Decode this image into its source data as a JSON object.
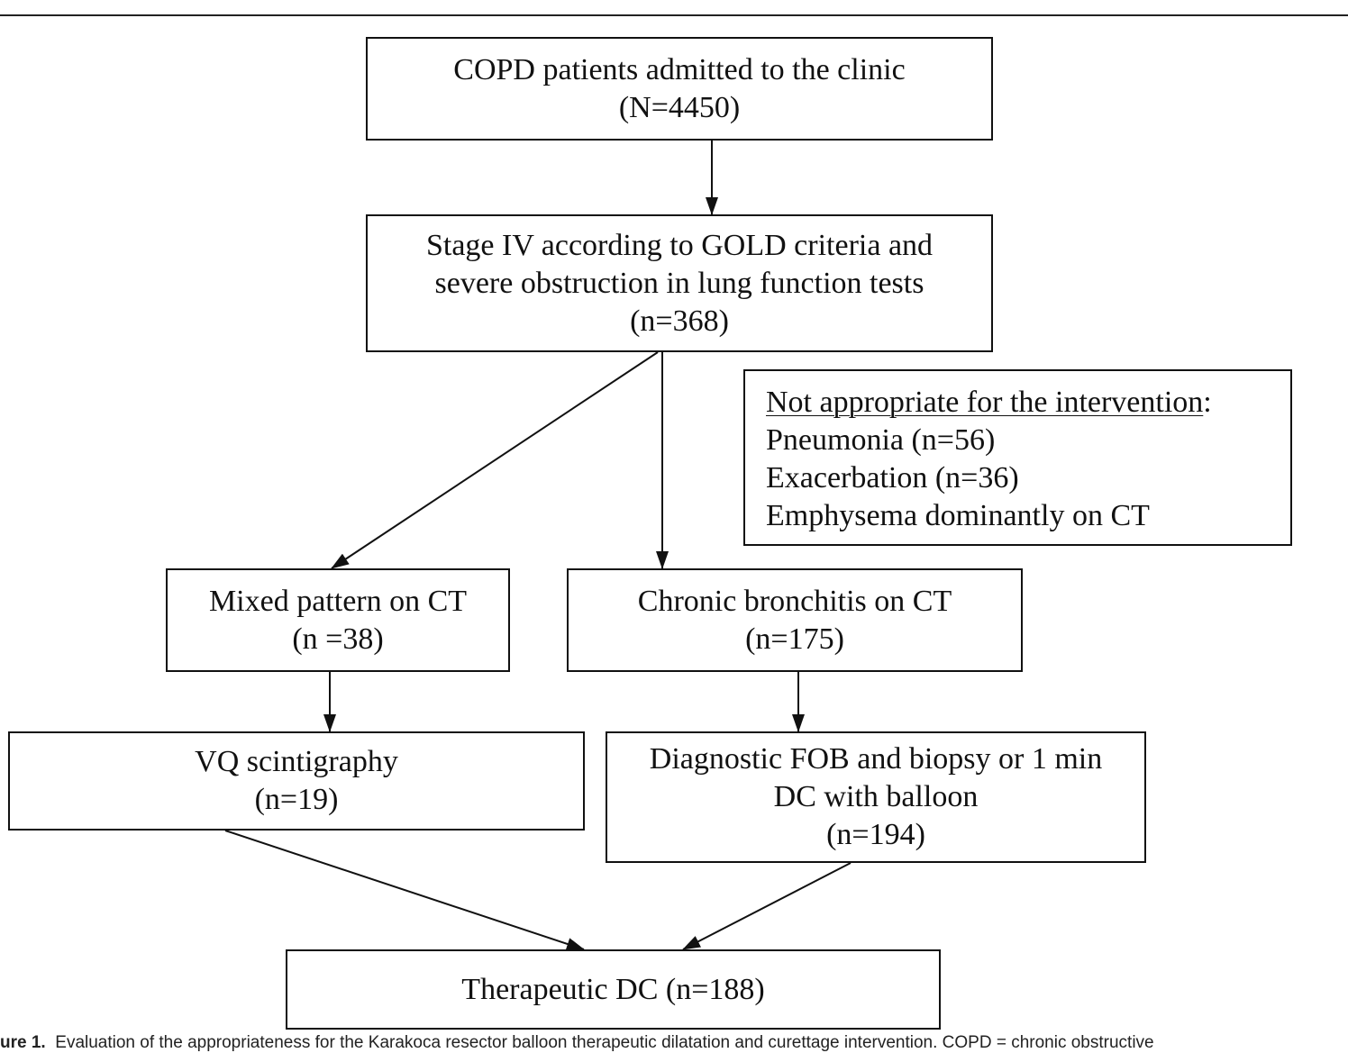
{
  "nodes": {
    "admitted": {
      "line1": "COPD patients admitted to the clinic",
      "line2": "(N=4450)"
    },
    "stage4": {
      "line1": "Stage IV according to GOLD criteria and",
      "line2": "severe obstruction in lung function tests",
      "line3": "(n=368)"
    },
    "mixed": {
      "line1": "Mixed pattern on CT",
      "line2": "(n =38)"
    },
    "bronchitis": {
      "line1": "Chronic bronchitis on CT",
      "line2": "(n=175)"
    },
    "vq": {
      "line1": "VQ scintigraphy",
      "line2": "(n=19)"
    },
    "fob": {
      "line1": "Diagnostic FOB and biopsy or 1 min",
      "line2": "DC with balloon",
      "line3": "(n=194)"
    },
    "therapeutic": {
      "line1": "Therapeutic DC (n=188)"
    }
  },
  "exclusion": {
    "heading": "Not appropriate for the intervention",
    "colon": ":",
    "items": [
      "Pneumonia (n=56)",
      "Exacerbation (n=36)",
      "Emphysema dominantly on CT"
    ]
  },
  "caption": {
    "label": "ure 1.",
    "text": "Evaluation of the appropriateness for the Karakoca resector balloon therapeutic dilatation and curettage intervention. COPD = chronic obstructive"
  }
}
